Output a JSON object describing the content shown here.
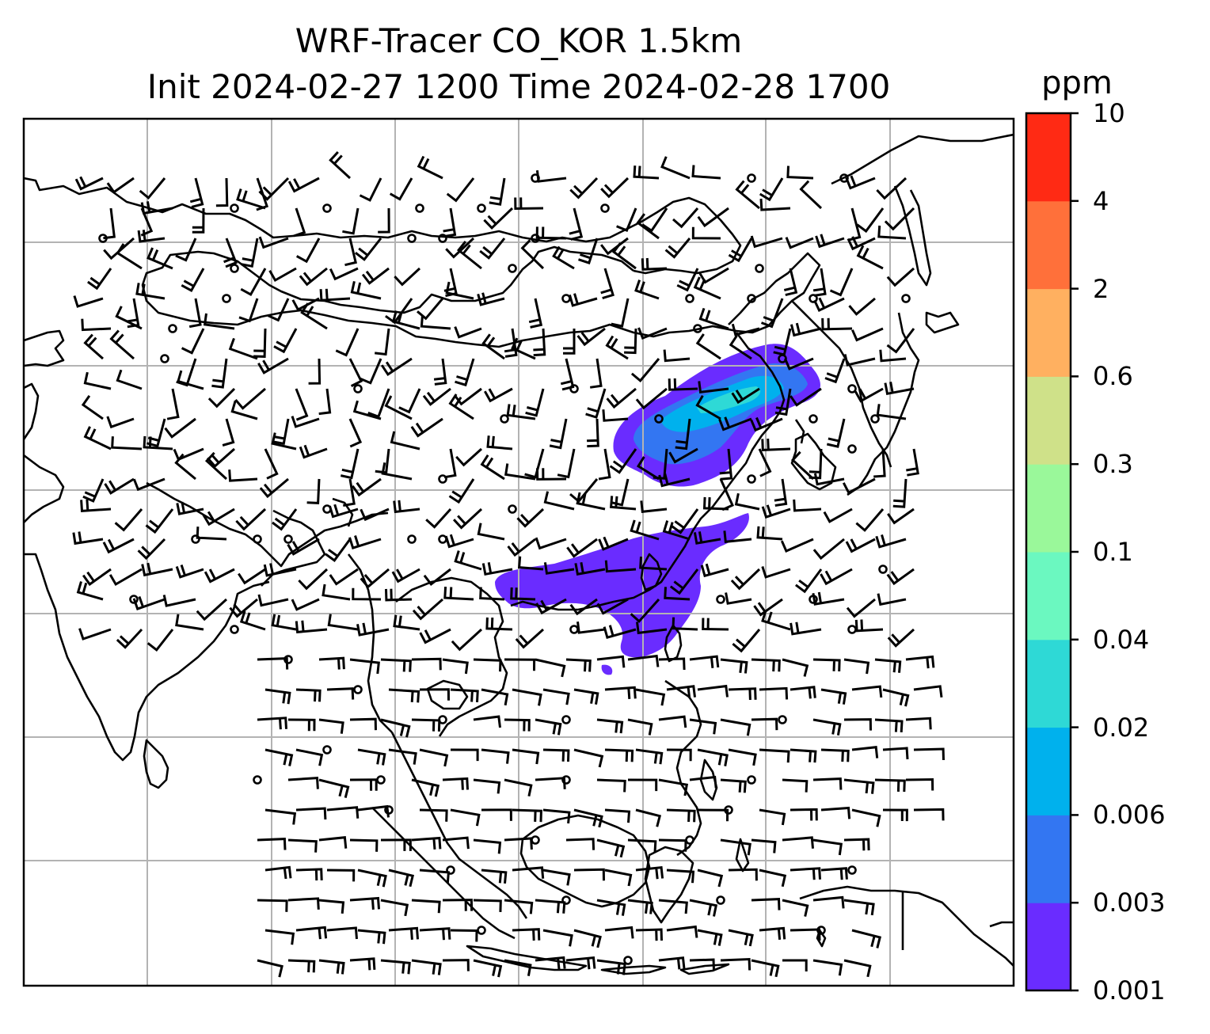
{
  "title": {
    "line1": "WRF-Tracer CO_KOR 1.5km",
    "line2": "Init 2024-02-27 1200 Time 2024-02-28 1700"
  },
  "colorbar": {
    "unit": "ppm",
    "levels": [
      "0.001",
      "0.003",
      "0.006",
      "0.02",
      "0.04",
      "0.1",
      "0.3",
      "0.6",
      "2",
      "4",
      "10"
    ],
    "colors": [
      "#6a2cff",
      "#3376f2",
      "#00b1ed",
      "#2ed9d6",
      "#6bf8c0",
      "#9af89a",
      "#cfe189",
      "#ffb060",
      "#ff703a",
      "#ff2a14"
    ]
  },
  "map": {
    "projection": "regional",
    "region": "East and Southeast Asia",
    "gridlines": true,
    "coastlines": true,
    "wind_barbs": true,
    "colors": {
      "coast": "#000000",
      "grid": "#b3b3b3",
      "barb": "#000000"
    }
  }
}
